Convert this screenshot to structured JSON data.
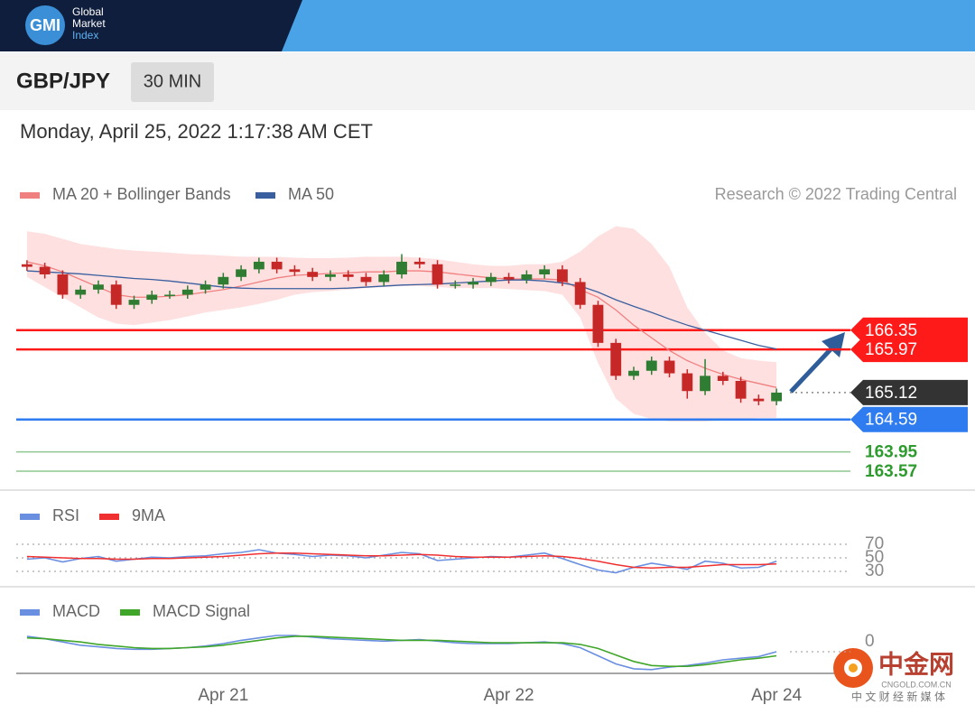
{
  "header": {
    "logo": "GMI",
    "brand": [
      "Global",
      "Market",
      "Index"
    ]
  },
  "symbol": "GBP/JPY",
  "interval": "30 MIN",
  "timestamp": "Monday, April 25, 2022 1:17:38 AM CET",
  "credit": "Research © 2022 Trading Central",
  "chart_data": [
    {
      "type": "candlestick",
      "up_color": "#2e7d32",
      "down_color": "#c62828",
      "categories": [
        null,
        null,
        null,
        null,
        null,
        null,
        null,
        null,
        null,
        null,
        null,
        "Apr 21",
        null,
        null,
        null,
        null,
        null,
        null,
        null,
        null,
        null,
        null,
        null,
        null,
        null,
        null,
        null,
        "Apr 22",
        null,
        null,
        null,
        null,
        null,
        null,
        null,
        null,
        null,
        null,
        null,
        null,
        null,
        null,
        "Apr 24"
      ],
      "open": [
        167.65,
        167.6,
        167.45,
        167.05,
        167.15,
        167.25,
        166.85,
        166.95,
        167.05,
        167.05,
        167.15,
        167.25,
        167.4,
        167.55,
        167.7,
        167.55,
        167.5,
        167.4,
        167.45,
        167.4,
        167.3,
        167.45,
        167.7,
        167.65,
        167.25,
        167.25,
        167.3,
        167.4,
        167.35,
        167.45,
        167.55,
        167.3,
        166.85,
        166.1,
        165.45,
        165.55,
        165.75,
        165.5,
        165.15,
        165.45,
        165.35,
        165.0,
        164.95
      ],
      "high": [
        167.73,
        167.68,
        167.53,
        167.23,
        167.33,
        167.33,
        167.03,
        167.13,
        167.13,
        167.23,
        167.33,
        167.48,
        167.63,
        167.78,
        167.78,
        167.63,
        167.58,
        167.53,
        167.53,
        167.48,
        167.53,
        167.85,
        167.78,
        167.73,
        167.33,
        167.38,
        167.48,
        167.48,
        167.53,
        167.63,
        167.63,
        167.38,
        166.93,
        166.18,
        165.63,
        165.83,
        165.83,
        165.58,
        165.78,
        165.53,
        165.43,
        165.08,
        165.2
      ],
      "low": [
        167.52,
        167.37,
        166.97,
        166.97,
        167.07,
        166.77,
        166.77,
        166.87,
        166.97,
        166.97,
        167.07,
        167.17,
        167.32,
        167.47,
        167.47,
        167.42,
        167.32,
        167.32,
        167.32,
        167.22,
        167.22,
        167.37,
        167.57,
        167.17,
        167.17,
        167.17,
        167.22,
        167.27,
        167.27,
        167.37,
        167.22,
        166.77,
        166.02,
        165.37,
        165.37,
        165.47,
        165.42,
        165.0,
        165.07,
        165.27,
        164.92,
        164.87,
        164.87
      ],
      "close": [
        167.6,
        167.45,
        167.05,
        167.15,
        167.25,
        166.85,
        166.95,
        167.05,
        167.05,
        167.15,
        167.25,
        167.4,
        167.55,
        167.7,
        167.55,
        167.5,
        167.4,
        167.45,
        167.4,
        167.3,
        167.45,
        167.7,
        167.65,
        167.25,
        167.25,
        167.3,
        167.4,
        167.35,
        167.45,
        167.55,
        167.3,
        166.85,
        166.1,
        165.45,
        165.55,
        165.75,
        165.5,
        165.15,
        165.45,
        165.35,
        165.0,
        164.95,
        165.12
      ],
      "series": [
        {
          "name": "MA 20 + Bollinger Bands",
          "color": "#f08080",
          "band_color": "#ffd6d6",
          "values": [
            167.7,
            167.62,
            167.5,
            167.35,
            167.2,
            167.05,
            167.0,
            167.0,
            167.02,
            167.05,
            167.1,
            167.15,
            167.22,
            167.3,
            167.38,
            167.43,
            167.45,
            167.47,
            167.48,
            167.5,
            167.5,
            167.52,
            167.52,
            167.5,
            167.46,
            167.42,
            167.38,
            167.36,
            167.36,
            167.36,
            167.34,
            167.15,
            167.0,
            166.75,
            166.45,
            166.2,
            165.95,
            165.75,
            165.6,
            165.48,
            165.38,
            165.3,
            165.22
          ],
          "upper": [
            168.3,
            168.25,
            168.15,
            168.05,
            168.0,
            167.95,
            167.92,
            167.9,
            167.88,
            167.85,
            167.84,
            167.82,
            167.8,
            167.8,
            167.8,
            167.78,
            167.77,
            167.77,
            167.78,
            167.8,
            167.8,
            167.8,
            167.78,
            167.75,
            167.7,
            167.65,
            167.62,
            167.62,
            167.65,
            167.65,
            167.7,
            167.9,
            168.2,
            168.4,
            168.35,
            168.05,
            167.6,
            166.8,
            166.3,
            165.95,
            165.8,
            165.75,
            165.72
          ],
          "lower": [
            167.4,
            167.2,
            167.0,
            166.8,
            166.6,
            166.48,
            166.45,
            166.5,
            166.55,
            166.62,
            166.7,
            166.75,
            166.8,
            166.87,
            166.95,
            167.05,
            167.1,
            167.12,
            167.15,
            167.18,
            167.2,
            167.22,
            167.22,
            167.2,
            167.18,
            167.18,
            167.18,
            167.16,
            167.14,
            167.12,
            167.05,
            166.6,
            165.7,
            165.0,
            164.7,
            164.6,
            164.55,
            164.55,
            164.55,
            164.57,
            164.6,
            164.62,
            164.62
          ]
        },
        {
          "name": "MA 50",
          "color": "#3a5f9f",
          "values": [
            167.52,
            167.5,
            167.48,
            167.46,
            167.43,
            167.4,
            167.37,
            167.35,
            167.32,
            167.28,
            167.24,
            167.2,
            167.18,
            167.17,
            167.17,
            167.17,
            167.17,
            167.17,
            167.18,
            167.2,
            167.22,
            167.24,
            167.25,
            167.26,
            167.28,
            167.3,
            167.32,
            167.34,
            167.34,
            167.32,
            167.28,
            167.22,
            167.1,
            166.95,
            166.82,
            166.7,
            166.57,
            166.45,
            166.35,
            166.25,
            166.15,
            166.05,
            165.98
          ]
        }
      ],
      "levels": [
        {
          "value": 166.35,
          "color": "#ff1a1a",
          "line": "solid",
          "label_style": "box"
        },
        {
          "value": 165.97,
          "color": "#ff1a1a",
          "line": "solid",
          "label_style": "box"
        },
        {
          "value": 165.12,
          "color": "#333333",
          "line": "dotted",
          "label_style": "box"
        },
        {
          "value": 164.59,
          "color": "#2f7bf0",
          "line": "solid",
          "label_style": "box"
        },
        {
          "value": 163.95,
          "color": "#2e9b2e",
          "line": "thin",
          "label_style": "text"
        },
        {
          "value": 163.57,
          "color": "#2e9b2e",
          "line": "thin",
          "label_style": "text"
        }
      ],
      "ylim": [
        163.25,
        168.5
      ]
    },
    {
      "type": "line",
      "series": [
        {
          "name": "RSI",
          "color": "#6a8fe0",
          "values": [
            48,
            50,
            44,
            49,
            52,
            45,
            48,
            51,
            50,
            52,
            53,
            56,
            58,
            62,
            57,
            55,
            52,
            54,
            53,
            50,
            54,
            58,
            56,
            46,
            48,
            50,
            52,
            51,
            54,
            57,
            49,
            40,
            32,
            28,
            36,
            42,
            38,
            33,
            45,
            42,
            35,
            36,
            45
          ]
        },
        {
          "name": "9MA",
          "color": "#f03030",
          "values": [
            52,
            51,
            50,
            49,
            49,
            48,
            48,
            49,
            49,
            50,
            51,
            52,
            54,
            56,
            57,
            57,
            56,
            55,
            54,
            53,
            53,
            54,
            55,
            54,
            52,
            51,
            51,
            51,
            52,
            53,
            52,
            49,
            45,
            40,
            36,
            35,
            36,
            36,
            38,
            40,
            40,
            40,
            41
          ]
        }
      ],
      "ylim": [
        10,
        90
      ],
      "yticks": [
        70,
        50,
        30
      ],
      "grid": true
    },
    {
      "type": "line",
      "series": [
        {
          "name": "MACD",
          "color": "#6a8fe0",
          "values": [
            0.19,
            0.16,
            0.12,
            0.08,
            0.06,
            0.04,
            0.03,
            0.03,
            0.04,
            0.05,
            0.07,
            0.1,
            0.14,
            0.17,
            0.2,
            0.2,
            0.18,
            0.16,
            0.15,
            0.14,
            0.13,
            0.14,
            0.15,
            0.13,
            0.11,
            0.1,
            0.1,
            0.1,
            0.11,
            0.12,
            0.1,
            0.05,
            -0.05,
            -0.15,
            -0.21,
            -0.22,
            -0.19,
            -0.17,
            -0.14,
            -0.1,
            -0.08,
            -0.06,
            0.0
          ]
        },
        {
          "name": "MACD Signal",
          "color": "#3fa62a",
          "values": [
            0.17,
            0.16,
            0.14,
            0.12,
            0.09,
            0.07,
            0.05,
            0.04,
            0.04,
            0.05,
            0.06,
            0.08,
            0.11,
            0.14,
            0.17,
            0.19,
            0.19,
            0.18,
            0.17,
            0.16,
            0.15,
            0.14,
            0.14,
            0.14,
            0.13,
            0.12,
            0.11,
            0.11,
            0.11,
            0.11,
            0.11,
            0.09,
            0.04,
            -0.04,
            -0.12,
            -0.17,
            -0.18,
            -0.18,
            -0.16,
            -0.13,
            -0.1,
            -0.08,
            -0.05
          ]
        }
      ],
      "ylim": [
        -0.3,
        0.3
      ],
      "yticks": [
        0
      ],
      "grid": false
    }
  ],
  "watermark": {
    "brand": "中金网",
    "domain": "CNGOLD.COM.CN",
    "tagline": "中 文 财 经 新 媒 体"
  }
}
